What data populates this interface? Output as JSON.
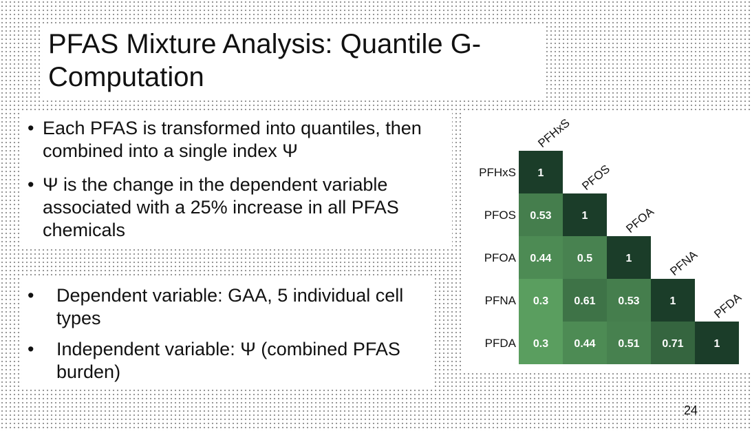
{
  "slide": {
    "title": "PFAS Mixture Analysis: Quantile G-Computation",
    "bullets": [
      "Each PFAS is transformed into quantiles, then combined into a single index Ψ",
      "Ψ is the change in the dependent variable associated with a 25% increase in all PFAS chemicals"
    ],
    "sub_bullets": [
      "Dependent variable: GAA, 5 individual cell types",
      "Independent variable: Ψ (combined PFAS burden)"
    ],
    "page_number": "24"
  },
  "chart_data": {
    "type": "heatmap",
    "layout": "lower-triangle",
    "variables": [
      "PFHxS",
      "PFOS",
      "PFOA",
      "PFNA",
      "PFDA"
    ],
    "matrix": [
      [
        1
      ],
      [
        0.53,
        1
      ],
      [
        0.44,
        0.5,
        1
      ],
      [
        0.3,
        0.61,
        0.53,
        1
      ],
      [
        0.3,
        0.44,
        0.51,
        0.71,
        1
      ]
    ],
    "color_low": "#5a9e5f",
    "color_high": "#1b3d29",
    "cell_text_color": "#ffffff"
  }
}
